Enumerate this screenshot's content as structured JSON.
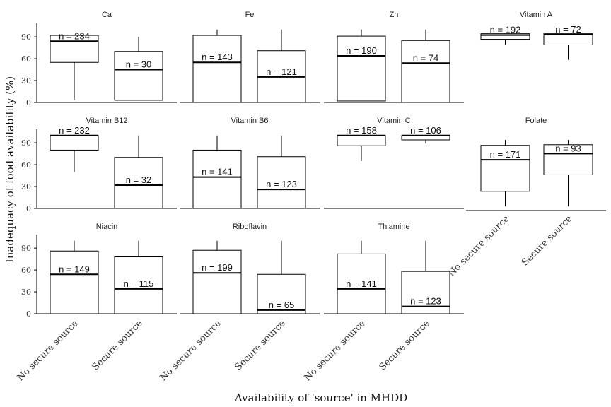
{
  "chart_data": {
    "type": "boxplot",
    "ylabel": "Inadequacy of food availability (%)",
    "xlabel": "Availability of 'source' in MHDD",
    "categories": [
      "No secure source",
      "Secure source"
    ],
    "yticks": [
      0,
      30,
      60,
      90
    ],
    "ylim": [
      0,
      100
    ],
    "facets": [
      {
        "name": "Ca",
        "boxes": [
          {
            "category": "No secure source",
            "whisker_low": 3,
            "q1": 55,
            "median": 84,
            "q3": 92,
            "whisker_high": 92,
            "n_label": "n = 234"
          },
          {
            "category": "Secure source",
            "whisker_low": 3,
            "q1": 3,
            "median": 45,
            "q3": 70,
            "whisker_high": 90,
            "n_label": "n = 30"
          }
        ]
      },
      {
        "name": "Fe",
        "boxes": [
          {
            "category": "No secure source",
            "whisker_low": 0,
            "q1": 0,
            "median": 55,
            "q3": 92,
            "whisker_high": 100,
            "n_label": "n = 143"
          },
          {
            "category": "Secure source",
            "whisker_low": 0,
            "q1": 0,
            "median": 35,
            "q3": 71,
            "whisker_high": 100,
            "n_label": "n = 121"
          }
        ]
      },
      {
        "name": "Zn",
        "boxes": [
          {
            "category": "No secure source",
            "whisker_low": 2,
            "q1": 2,
            "median": 64,
            "q3": 91,
            "whisker_high": 100,
            "n_label": "n = 190"
          },
          {
            "category": "Secure source",
            "whisker_low": 0,
            "q1": 0,
            "median": 54,
            "q3": 85,
            "whisker_high": 100,
            "n_label": "n = 74"
          }
        ]
      },
      {
        "name": "Vitamin A",
        "boxes": [
          {
            "category": "No secure source",
            "whisker_low": 75,
            "q1": 87,
            "median": 96,
            "q3": 99,
            "whisker_high": 99,
            "n_label": "n = 192"
          },
          {
            "category": "Secure source",
            "whisker_low": 43,
            "q1": 75,
            "median": 97,
            "q3": 99,
            "whisker_high": 99,
            "n_label": "n = 72"
          }
        ]
      },
      {
        "name": "Vitamin B12",
        "boxes": [
          {
            "category": "No secure source",
            "whisker_low": 50,
            "q1": 80,
            "median": 100,
            "q3": 100,
            "whisker_high": 100,
            "n_label": "n = 232"
          },
          {
            "category": "Secure source",
            "whisker_low": 0,
            "q1": 0,
            "median": 32,
            "q3": 70,
            "whisker_high": 100,
            "n_label": "n = 32"
          }
        ]
      },
      {
        "name": "Vitamin B6",
        "boxes": [
          {
            "category": "No secure source",
            "whisker_low": 0,
            "q1": 0,
            "median": 43,
            "q3": 80,
            "whisker_high": 100,
            "n_label": "n = 141"
          },
          {
            "category": "Secure source",
            "whisker_low": 0,
            "q1": 0,
            "median": 26,
            "q3": 71,
            "whisker_high": 100,
            "n_label": "n = 123"
          }
        ]
      },
      {
        "name": "Vitamin C",
        "boxes": [
          {
            "category": "No secure source",
            "whisker_low": 65,
            "q1": 86,
            "median": 100,
            "q3": 100,
            "whisker_high": 100,
            "n_label": "n = 158"
          },
          {
            "category": "Secure source",
            "whisker_low": 89,
            "q1": 94,
            "median": 100,
            "q3": 100,
            "whisker_high": 100,
            "n_label": "n = 106"
          }
        ]
      },
      {
        "name": "Folate",
        "boxes": [
          {
            "category": "No secure source",
            "whisker_low": 3,
            "q1": 25,
            "median": 71,
            "q3": 92,
            "whisker_high": 100,
            "n_label": "n = 171"
          },
          {
            "category": "Secure source",
            "whisker_low": 3,
            "q1": 49,
            "median": 80,
            "q3": 93,
            "whisker_high": 100,
            "n_label": "n = 93"
          }
        ]
      },
      {
        "name": "Niacin",
        "boxes": [
          {
            "category": "No secure source",
            "whisker_low": 0,
            "q1": 0,
            "median": 54,
            "q3": 86,
            "whisker_high": 100,
            "n_label": "n = 149"
          },
          {
            "category": "Secure source",
            "whisker_low": 0,
            "q1": 0,
            "median": 34,
            "q3": 78,
            "whisker_high": 100,
            "n_label": "n = 115"
          }
        ]
      },
      {
        "name": "Riboflavin",
        "boxes": [
          {
            "category": "No secure source",
            "whisker_low": 0,
            "q1": 0,
            "median": 56,
            "q3": 87,
            "whisker_high": 100,
            "n_label": "n = 199"
          },
          {
            "category": "Secure source",
            "whisker_low": 0,
            "q1": 0,
            "median": 5,
            "q3": 54,
            "whisker_high": 100,
            "n_label": "n = 65"
          }
        ]
      },
      {
        "name": "Thiamine",
        "boxes": [
          {
            "category": "No secure source",
            "whisker_low": 0,
            "q1": 0,
            "median": 34,
            "q3": 82,
            "whisker_high": 100,
            "n_label": "n = 141"
          },
          {
            "category": "Secure source",
            "whisker_low": 0,
            "q1": 0,
            "median": 10,
            "q3": 58,
            "whisker_high": 100,
            "n_label": "n = 123"
          }
        ]
      }
    ]
  }
}
